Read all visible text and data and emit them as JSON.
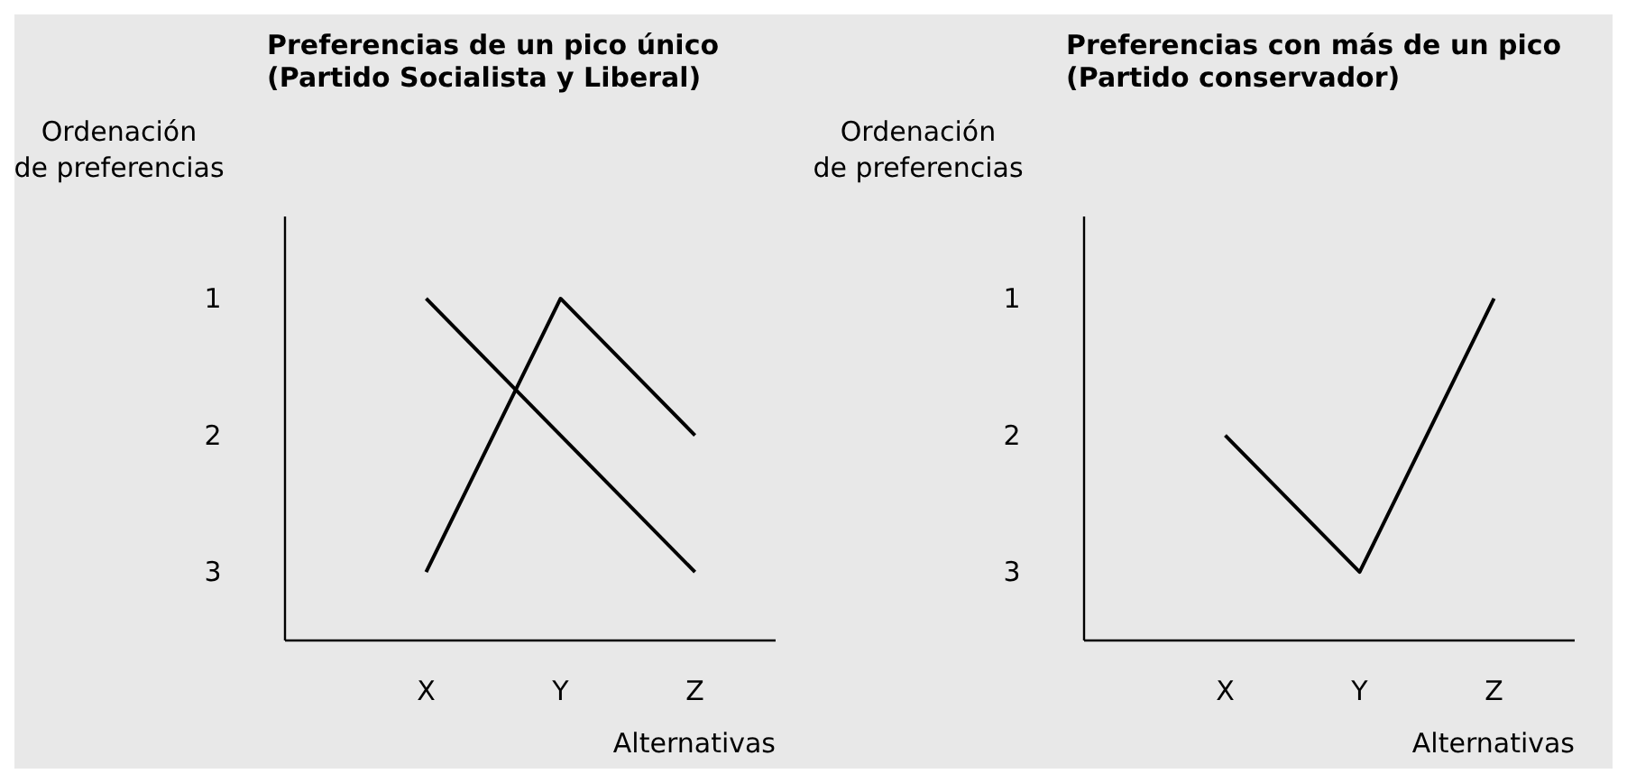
{
  "chart_data": [
    {
      "type": "line",
      "title": "Preferencias de un pico único\n(Partido Socialista y Liberal)",
      "ylabel": "Ordenación\nde preferencias",
      "xlabel": "Alternativas",
      "categories": [
        "X",
        "Y",
        "Z"
      ],
      "ylim": [
        3.5,
        0.4
      ],
      "yticks": [
        1,
        2,
        3
      ],
      "series": [
        {
          "color": "#000000",
          "values": [
            1,
            2,
            3
          ]
        },
        {
          "color": "#000000",
          "values": [
            3,
            1,
            2
          ]
        }
      ]
    },
    {
      "type": "line",
      "title": "Preferencias con más de un pico\n(Partido conservador)",
      "ylabel": "Ordenación\nde preferencias",
      "xlabel": "Alternativas",
      "categories": [
        "X",
        "Y",
        "Z"
      ],
      "ylim": [
        3.5,
        0.4
      ],
      "yticks": [
        1,
        2,
        3
      ],
      "series": [
        {
          "color": "#000000",
          "values": [
            2,
            3,
            1
          ]
        }
      ]
    }
  ]
}
